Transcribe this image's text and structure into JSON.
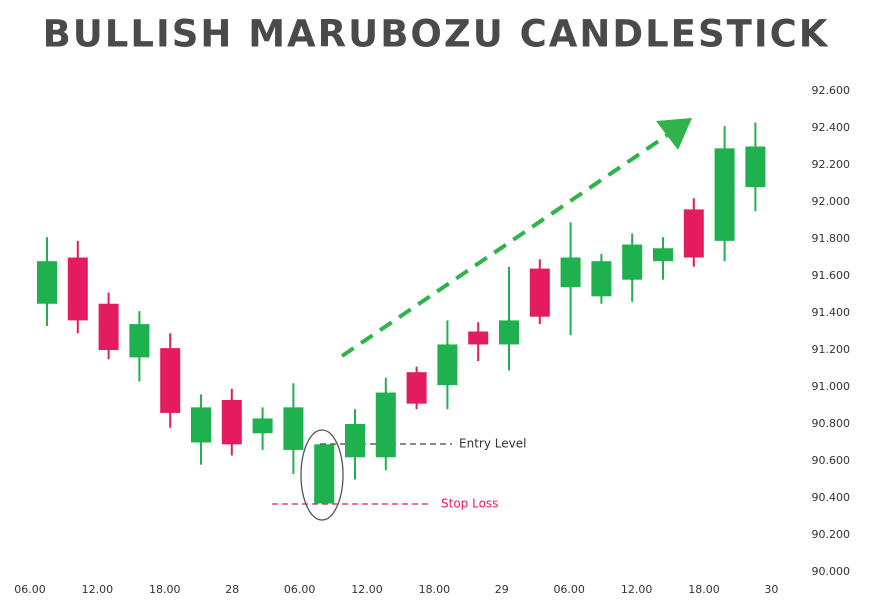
{
  "chart_data": {
    "type": "candlestick",
    "title": "BULLISH MARUBOZU CANDLESTICK",
    "x_labels": [
      "06.00",
      "12.00",
      "18.00",
      "28",
      "06.00",
      "12.00",
      "18.00",
      "29",
      "06.00",
      "12.00",
      "18.00",
      "30"
    ],
    "open": [
      91.45,
      91.7,
      91.45,
      91.16,
      91.21,
      90.7,
      90.93,
      90.75,
      90.66,
      90.37,
      90.62,
      90.62,
      91.08,
      91.01,
      91.3,
      91.23,
      91.64,
      91.54,
      91.49,
      91.58,
      91.68,
      91.96,
      91.79,
      92.08
    ],
    "high": [
      91.81,
      91.79,
      91.51,
      91.41,
      91.29,
      90.96,
      90.99,
      90.89,
      91.02,
      90.69,
      90.88,
      91.05,
      91.11,
      91.36,
      91.35,
      91.65,
      91.69,
      91.89,
      91.72,
      91.83,
      91.81,
      92.02,
      92.41,
      92.43
    ],
    "low": [
      91.33,
      91.29,
      91.15,
      91.03,
      90.78,
      90.58,
      90.63,
      90.66,
      90.53,
      90.37,
      90.5,
      90.55,
      90.88,
      90.88,
      91.14,
      91.09,
      91.34,
      91.28,
      91.45,
      91.46,
      91.58,
      91.65,
      91.68,
      91.95
    ],
    "close": [
      91.68,
      91.36,
      91.2,
      91.34,
      90.86,
      90.89,
      90.69,
      90.83,
      90.89,
      90.69,
      90.8,
      90.97,
      90.91,
      91.23,
      91.23,
      91.36,
      91.38,
      91.7,
      91.68,
      91.77,
      91.75,
      91.7,
      92.29,
      92.3
    ],
    "up_color": "#1fb04f",
    "down_color": "#e31b5f",
    "ylim": [
      90.0,
      92.6
    ],
    "yticks": [
      {
        "value": 90.0,
        "label": "90.000"
      },
      {
        "value": 90.2,
        "label": "90.200"
      },
      {
        "value": 90.4,
        "label": "90.400"
      },
      {
        "value": 90.6,
        "label": "90.600"
      },
      {
        "value": 90.8,
        "label": "90.800"
      },
      {
        "value": 91.0,
        "label": "91.000"
      },
      {
        "value": 91.2,
        "label": "91.200"
      },
      {
        "value": 91.4,
        "label": "91.400"
      },
      {
        "value": 91.6,
        "label": "91.600"
      },
      {
        "value": 91.8,
        "label": "91.800"
      },
      {
        "value": 92.0,
        "label": "92.000"
      },
      {
        "value": 92.2,
        "label": "92.200"
      },
      {
        "value": 92.4,
        "label": "92.400"
      },
      {
        "value": 92.6,
        "label": "92.600"
      }
    ],
    "annotations": {
      "entry": "Entry Level",
      "stop": "Stop Loss"
    }
  }
}
